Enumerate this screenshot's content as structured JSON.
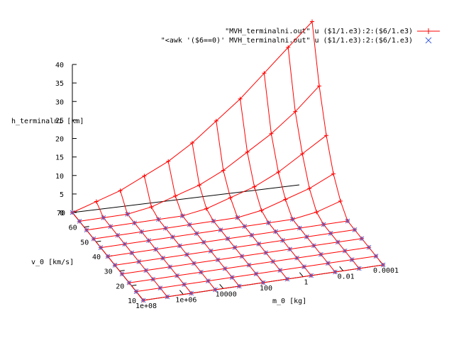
{
  "chart_data": {
    "type": "surface",
    "legend_position": "top-right",
    "legend": [
      {
        "label": "\"MVH_terminalni.out\" u ($1/1.e3):2:($6/1.e3)",
        "color": "#ff0000",
        "marker": "plus"
      },
      {
        "label": "\"<awk '($6==0)' MVH_terminalni.out\" u ($1/1.e3):2:($6/1.e3)",
        "color": "#4060e0",
        "marker": "cross"
      }
    ],
    "xlabel": "m_0 [kg]",
    "ylabel": "v_0 [km/s]",
    "zlabel": "h_terminalni [km]",
    "x_log": true,
    "x_ticks": [
      "1e+08",
      "1e+06",
      "10000",
      "100",
      "1",
      "0.01",
      "0.0001"
    ],
    "y_ticks": [
      "10",
      "20",
      "30",
      "40",
      "50",
      "60",
      "70"
    ],
    "z_ticks": [
      "0",
      "5",
      "10",
      "15",
      "20",
      "25",
      "30",
      "35",
      "40"
    ],
    "zlim": [
      0,
      40
    ],
    "grid": false,
    "x_values": [
      100000000.0,
      10000000.0,
      1000000.0,
      100000.0,
      10000,
      1000,
      100,
      10,
      1,
      0.1,
      0.01
    ],
    "y_values": [
      10,
      15,
      20,
      25,
      30,
      35,
      40,
      45,
      50,
      55,
      60
    ],
    "h_surface": [
      [
        0,
        0,
        0,
        0,
        0,
        0,
        0,
        0,
        0,
        0,
        0
      ],
      [
        0,
        0,
        0,
        0,
        0,
        0,
        0,
        0,
        0,
        0,
        0
      ],
      [
        0,
        0,
        0,
        0,
        0,
        0,
        0,
        0,
        0,
        0,
        0
      ],
      [
        0,
        0,
        0,
        0,
        0,
        0,
        0,
        0,
        0,
        0,
        0
      ],
      [
        0,
        0,
        0,
        0,
        0,
        0,
        0,
        0,
        0,
        0,
        0
      ],
      [
        0,
        0,
        0,
        0,
        0,
        0,
        0,
        0,
        0,
        0,
        0
      ],
      [
        0,
        0,
        0,
        0,
        0,
        0,
        0,
        0,
        0,
        1,
        3
      ],
      [
        0,
        0,
        0,
        0,
        0,
        0,
        0,
        1,
        3,
        5,
        8
      ],
      [
        0,
        0,
        0,
        0,
        0,
        1,
        3,
        5,
        8,
        12,
        16
      ],
      [
        0,
        0,
        0,
        1,
        3,
        5,
        8,
        12,
        16,
        21,
        27
      ],
      [
        0,
        2,
        4,
        7,
        10,
        14,
        19,
        24,
        30,
        36,
        42
      ]
    ]
  }
}
